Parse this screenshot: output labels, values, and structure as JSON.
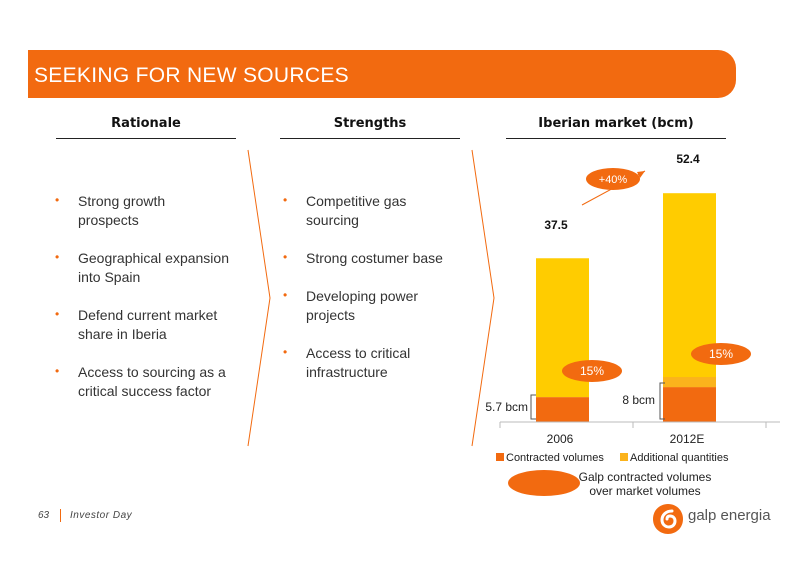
{
  "title": "SEEKING FOR NEW SOURCES",
  "rationale": {
    "heading": "Rationale",
    "items": [
      {
        "line1": "Strong growth",
        "line2": "prospects"
      },
      {
        "line1": "Geographical expansion",
        "line2": "into Spain"
      },
      {
        "line1": "Defend current market",
        "line2": "share in Iberia"
      },
      {
        "line1": "Access to sourcing as a",
        "line2": "critical success factor"
      }
    ]
  },
  "strengths": {
    "heading": "Strengths",
    "items": [
      {
        "line1": "Competitive gas",
        "line2": "sourcing"
      },
      {
        "line1": "Strong costumer base",
        "line2": ""
      },
      {
        "line1": "Developing power",
        "line2": "projects"
      },
      {
        "line1": "Access to critical",
        "line2": "infrastructure"
      }
    ]
  },
  "chart_data": {
    "type": "bar",
    "title": "Iberian market (bcm)",
    "categories": [
      "2006",
      "2012E"
    ],
    "totals": [
      37.5,
      52.4
    ],
    "total_labels": [
      "37.5",
      "52.4"
    ],
    "series": [
      {
        "name": "Contracted volumes",
        "values": [
          5.7,
          8
        ],
        "color": "#f26a10"
      },
      {
        "name": "Additional quantities",
        "values": [
          31.8,
          44.4
        ],
        "color": "#ffcc00"
      }
    ],
    "contracted_labels": [
      "5.7 bcm",
      "8 bcm"
    ],
    "share_labels": [
      "15%",
      "15%"
    ],
    "share_legend": {
      "line1": "Galp contracted volumes",
      "line2": "over market volumes"
    },
    "growth_label": "+40%",
    "additional_legend_color": "#fbb31c",
    "ylim": [
      0,
      60
    ],
    "legend_position": "bottom"
  },
  "footer": {
    "page": "63",
    "text": "Investor Day"
  },
  "logo": {
    "text": "galp energia",
    "icon": "galp-logo-icon"
  },
  "colors": {
    "accent": "#f26a10",
    "yellow": "#ffcc00"
  }
}
